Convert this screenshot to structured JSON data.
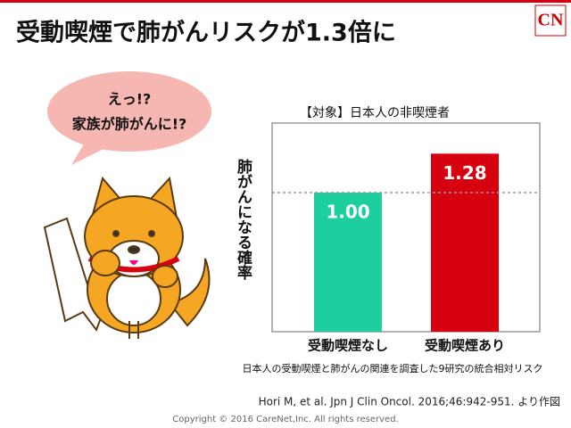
{
  "header": {
    "title": "受動喫煙で肺がんリスクが1.3倍に",
    "logo": "CN"
  },
  "bubble": {
    "lines": [
      "えっ!?",
      "家族が肺がんに!?"
    ]
  },
  "chart_data": {
    "type": "bar",
    "title": "【対象】日本人の非喫煙者",
    "y_label": "肺がんになる確率",
    "categories": [
      "受動喫煙なし",
      "受動喫煙あり"
    ],
    "values": [
      1.0,
      1.28
    ],
    "value_labels": [
      "1.00",
      "1.28"
    ],
    "colors": [
      "#1dcf9f",
      "#d7000f"
    ],
    "ylim": [
      0,
      1.5
    ],
    "reference_line": 1.0,
    "note": "日本人の受動喫煙と肺がんの関連を調査した9研究の統合相対リスク"
  },
  "footer": {
    "source": "Hori M, et al. Jpn J Clin Oncol. 2016;46:942-951. より作図",
    "copyright": "Copyright © 2016 CareNet,Inc. All rights reserved."
  }
}
